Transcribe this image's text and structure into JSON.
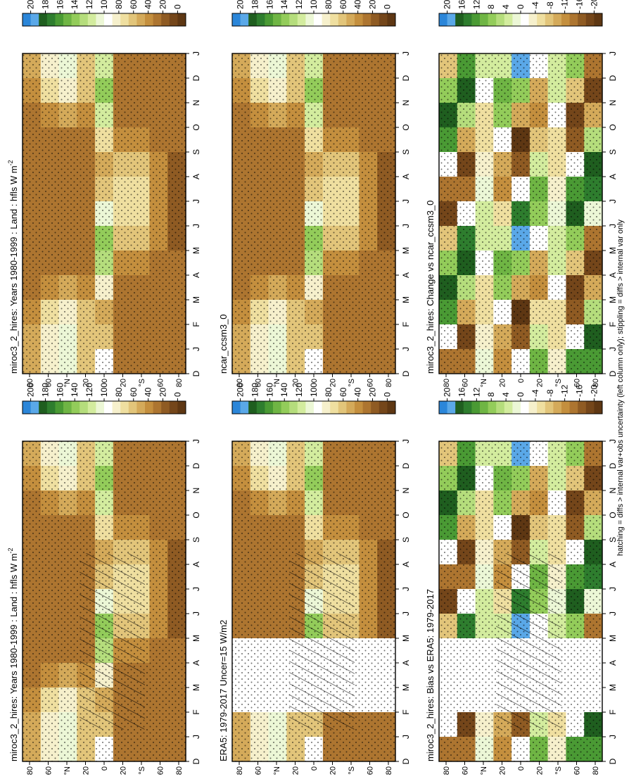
{
  "footnote": "hatching = diffs > internal var+obs uncertainty (left column only); stippling = diffs > internal var only",
  "scales": {
    "absolute": {
      "ticks": [
        "200",
        "180",
        "160",
        "140",
        "120",
        "100",
        "80",
        "60",
        "40",
        "20",
        "0"
      ],
      "colors": [
        "#2b86d9",
        "#5aa8e8",
        "#1f5e1f",
        "#2e7d2e",
        "#4a9a34",
        "#6fb544",
        "#93cc5a",
        "#b5dd7c",
        "#d3ec9e",
        "#ecf7d6",
        "#ffffff",
        "#f6f0cc",
        "#efdfa0",
        "#e2c57a",
        "#d4aa5a",
        "#c48f3e",
        "#ad7530",
        "#8f5b23",
        "#74461a",
        "#5e3713"
      ]
    },
    "difference": {
      "ticks": [
        "20",
        "16",
        "12",
        "8",
        "4",
        "0",
        "-4",
        "-8",
        "-12",
        "-16",
        "-20"
      ],
      "colors": [
        "#2b86d9",
        "#5aa8e8",
        "#1f5e1f",
        "#2e7d2e",
        "#4a9a34",
        "#6fb544",
        "#93cc5a",
        "#b5dd7c",
        "#d3ec9e",
        "#ecf7d6",
        "#ffffff",
        "#f6f0cc",
        "#efdfa0",
        "#e2c57a",
        "#d4aa5a",
        "#c48f3e",
        "#ad7530",
        "#8f5b23",
        "#74461a",
        "#5e3713"
      ]
    }
  },
  "chart_data": [
    {
      "type": "heatmap",
      "id": "p1",
      "column": 0,
      "row": 0,
      "scale": "absolute",
      "title": "miroc3_2_hires: Years 1980-1999 : Land : hfls W m",
      "title_superscript": "-2",
      "x_ticks": [
        "D",
        "J",
        "F",
        "M",
        "A",
        "M",
        "J",
        "J",
        "A",
        "S",
        "O",
        "N",
        "D",
        "J"
      ],
      "y_ticks": [
        "80",
        "60",
        "°N",
        "20",
        "0",
        "20",
        "°S",
        "60",
        "80"
      ],
      "hatching": true,
      "stippling": true,
      "missing_months": []
    },
    {
      "type": "heatmap",
      "id": "p2",
      "column": 1,
      "row": 0,
      "scale": "absolute",
      "title": "miroc3_2_hires: Years 1980-1999 : Land : hfls W m",
      "title_superscript": "-2",
      "x_ticks": [
        "D",
        "J",
        "F",
        "M",
        "A",
        "M",
        "J",
        "J",
        "A",
        "S",
        "O",
        "N",
        "D",
        "J"
      ],
      "y_ticks": [
        "80",
        "60",
        "°N",
        "20",
        "0",
        "20",
        "°S",
        "60",
        "80"
      ],
      "hatching": false,
      "stippling": true,
      "missing_months": []
    },
    {
      "type": "heatmap",
      "id": "p3",
      "column": 0,
      "row": 1,
      "scale": "absolute",
      "title": "ERA5: 1979-2017 Uncer=15 W/m2",
      "x_ticks": [
        "D",
        "J",
        "F",
        "M",
        "A",
        "M",
        "J",
        "J",
        "A",
        "S",
        "O",
        "N",
        "D",
        "J"
      ],
      "y_ticks": [
        "80",
        "60",
        "°N",
        "20",
        "0",
        "20",
        "°S",
        "60",
        "80"
      ],
      "hatching": true,
      "stippling": true,
      "missing_months": [
        "F",
        "M",
        "A"
      ]
    },
    {
      "type": "heatmap",
      "id": "p4",
      "column": 1,
      "row": 1,
      "scale": "absolute",
      "title": "ncar_ccsm3_0",
      "x_ticks": [
        "D",
        "J",
        "F",
        "M",
        "A",
        "M",
        "J",
        "J",
        "A",
        "S",
        "O",
        "N",
        "D",
        "J"
      ],
      "y_ticks": [
        "80",
        "60",
        "°N",
        "20",
        "0",
        "20",
        "°S",
        "60",
        "80"
      ],
      "hatching": false,
      "stippling": true,
      "missing_months": []
    },
    {
      "type": "heatmap",
      "id": "p5",
      "column": 0,
      "row": 2,
      "scale": "difference",
      "title": "miroc3_2_hires: Bias vs ERA5: 1979-2017",
      "x_ticks": [
        "D",
        "J",
        "F",
        "M",
        "A",
        "M",
        "J",
        "J",
        "A",
        "S",
        "O",
        "N",
        "D",
        "J"
      ],
      "y_ticks": [
        "80",
        "60",
        "°N",
        "20",
        "0",
        "20",
        "°S",
        "60",
        "80"
      ],
      "hatching": true,
      "stippling": true,
      "missing_months": [
        "F",
        "M",
        "A"
      ]
    },
    {
      "type": "heatmap",
      "id": "p6",
      "column": 1,
      "row": 2,
      "scale": "difference",
      "title": "miroc3_2_hires: Change vs ncar_ccsm3_0",
      "x_ticks": [
        "D",
        "J",
        "F",
        "M",
        "A",
        "M",
        "J",
        "J",
        "A",
        "S",
        "O",
        "N",
        "D",
        "J"
      ],
      "y_ticks": [
        "80",
        "60",
        "°N",
        "20",
        "0",
        "20",
        "°S",
        "60",
        "80"
      ],
      "hatching": false,
      "stippling": true,
      "missing_months": []
    }
  ]
}
